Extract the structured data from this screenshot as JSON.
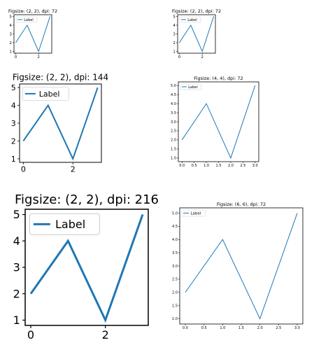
{
  "chart_data": [
    {
      "type": "line",
      "title": "Figsize: (2, 2), dpi: 72",
      "x": [
        0,
        1,
        2,
        3
      ],
      "series": [
        {
          "name": "Label",
          "values": [
            2,
            4,
            1,
            5
          ]
        }
      ],
      "xticks": [
        "0",
        "2"
      ],
      "yticks": [
        "1",
        "2",
        "3",
        "4",
        "5"
      ],
      "xlim": [
        -0.15,
        3.15
      ],
      "ylim": [
        0.8,
        5.2
      ],
      "legend": "upper-left",
      "grid": false
    },
    {
      "type": "line",
      "title": "Figsize: (2, 2), dpi: 72",
      "x": [
        0,
        1,
        2,
        3
      ],
      "series": [
        {
          "name": "Label",
          "values": [
            2,
            4,
            1,
            5
          ]
        }
      ],
      "xticks": [
        "0",
        "2"
      ],
      "yticks": [
        "1",
        "2",
        "3",
        "4",
        "5"
      ],
      "xlim": [
        -0.15,
        3.15
      ],
      "ylim": [
        0.8,
        5.2
      ],
      "legend": "upper-left",
      "grid": false
    },
    {
      "type": "line",
      "title": "Figsize: (2, 2), dpi: 144",
      "x": [
        0,
        1,
        2,
        3
      ],
      "series": [
        {
          "name": "Label",
          "values": [
            2,
            4,
            1,
            5
          ]
        }
      ],
      "xticks": [
        "0",
        "2"
      ],
      "yticks": [
        "1",
        "2",
        "3",
        "4",
        "5"
      ],
      "xlim": [
        -0.15,
        3.15
      ],
      "ylim": [
        0.8,
        5.2
      ],
      "legend": "upper-left",
      "grid": false
    },
    {
      "type": "line",
      "title": "Figsize: (4, 4), dpi: 72",
      "x": [
        0,
        1,
        2,
        3
      ],
      "series": [
        {
          "name": "Label",
          "values": [
            2,
            4,
            1,
            5
          ]
        }
      ],
      "xticks": [
        "0.0",
        "0.5",
        "1.0",
        "1.5",
        "2.0",
        "2.5",
        "3.0"
      ],
      "yticks": [
        "1.0",
        "1.5",
        "2.0",
        "2.5",
        "3.0",
        "3.5",
        "4.0",
        "4.5",
        "5.0"
      ],
      "xlim": [
        -0.15,
        3.15
      ],
      "ylim": [
        0.8,
        5.2
      ],
      "legend": "upper-left",
      "grid": false
    },
    {
      "type": "line",
      "title": "Figsize: (2, 2), dpi: 216",
      "x": [
        0,
        1,
        2,
        3
      ],
      "series": [
        {
          "name": "Label",
          "values": [
            2,
            4,
            1,
            5
          ]
        }
      ],
      "xticks": [
        "0",
        "2"
      ],
      "yticks": [
        "1",
        "2",
        "3",
        "4",
        "5"
      ],
      "xlim": [
        -0.15,
        3.15
      ],
      "ylim": [
        0.8,
        5.2
      ],
      "legend": "upper-left",
      "grid": false
    },
    {
      "type": "line",
      "title": "Figsize: (6, 6), dpi: 72",
      "x": [
        0,
        1,
        2,
        3
      ],
      "series": [
        {
          "name": "Label",
          "values": [
            2,
            4,
            1,
            5
          ]
        }
      ],
      "xticks": [
        "0.0",
        "0.5",
        "1.0",
        "1.5",
        "2.0",
        "2.5",
        "3.0"
      ],
      "yticks": [
        "1.0",
        "1.5",
        "2.0",
        "2.5",
        "3.0",
        "3.5",
        "4.0",
        "4.5",
        "5.0"
      ],
      "xlim": [
        -0.15,
        3.15
      ],
      "ylim": [
        0.8,
        5.2
      ],
      "legend": "upper-left",
      "grid": false
    }
  ],
  "colors": {
    "line": "#1f77b4",
    "axis": "#000000",
    "legend_border": "#cccccc"
  }
}
